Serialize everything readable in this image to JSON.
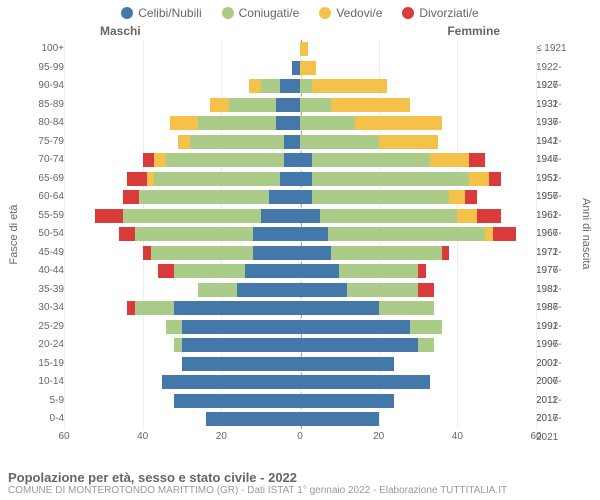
{
  "legend": [
    {
      "label": "Celibi/Nubili",
      "color": "#4477aa"
    },
    {
      "label": "Coniugati/e",
      "color": "#aacc88"
    },
    {
      "label": "Vedovi/e",
      "color": "#f4c24b"
    },
    {
      "label": "Divorziati/e",
      "color": "#d93a3a"
    }
  ],
  "headers": {
    "male": "Maschi",
    "female": "Femmine"
  },
  "yaxis_left_title": "Fasce di età",
  "yaxis_right_title": "Anni di nascita",
  "xaxis": {
    "ticks": [
      60,
      40,
      20,
      0,
      20,
      40,
      60
    ],
    "max": 60
  },
  "title": "Popolazione per età, sesso e stato civile - 2022",
  "source": "COMUNE DI MONTEROTONDO MARITTIMO (GR) - Dati ISTAT 1° gennaio 2022 - Elaborazione TUTTITALIA.IT",
  "colors": {
    "single": "#4477aa",
    "married": "#aacc88",
    "widowed": "#f4c24b",
    "divorced": "#d93a3a",
    "grid": "#eeeeee",
    "centerline": "#aaaaaa",
    "text": "#666666"
  },
  "rows": [
    {
      "age": "100+",
      "year": "≤ 1921",
      "m": {
        "s": 0,
        "c": 0,
        "w": 0,
        "d": 0
      },
      "f": {
        "s": 0,
        "c": 0,
        "w": 2,
        "d": 0
      }
    },
    {
      "age": "95-99",
      "year": "1922-1926",
      "m": {
        "s": 2,
        "c": 0,
        "w": 0,
        "d": 0
      },
      "f": {
        "s": 0,
        "c": 0,
        "w": 4,
        "d": 0
      }
    },
    {
      "age": "90-94",
      "year": "1927-1931",
      "m": {
        "s": 5,
        "c": 5,
        "w": 3,
        "d": 0
      },
      "f": {
        "s": 0,
        "c": 3,
        "w": 19,
        "d": 0
      }
    },
    {
      "age": "85-89",
      "year": "1932-1936",
      "m": {
        "s": 6,
        "c": 12,
        "w": 5,
        "d": 0
      },
      "f": {
        "s": 0,
        "c": 8,
        "w": 20,
        "d": 0
      }
    },
    {
      "age": "80-84",
      "year": "1937-1941",
      "m": {
        "s": 6,
        "c": 20,
        "w": 7,
        "d": 0
      },
      "f": {
        "s": 0,
        "c": 14,
        "w": 22,
        "d": 0
      }
    },
    {
      "age": "75-79",
      "year": "1942-1946",
      "m": {
        "s": 4,
        "c": 24,
        "w": 3,
        "d": 0
      },
      "f": {
        "s": 0,
        "c": 20,
        "w": 15,
        "d": 0
      }
    },
    {
      "age": "70-74",
      "year": "1947-1951",
      "m": {
        "s": 4,
        "c": 30,
        "w": 3,
        "d": 3
      },
      "f": {
        "s": 3,
        "c": 30,
        "w": 10,
        "d": 4
      }
    },
    {
      "age": "65-69",
      "year": "1952-1956",
      "m": {
        "s": 5,
        "c": 32,
        "w": 2,
        "d": 5
      },
      "f": {
        "s": 3,
        "c": 40,
        "w": 5,
        "d": 3
      }
    },
    {
      "age": "60-64",
      "year": "1957-1961",
      "m": {
        "s": 8,
        "c": 33,
        "w": 0,
        "d": 4
      },
      "f": {
        "s": 3,
        "c": 35,
        "w": 4,
        "d": 3
      }
    },
    {
      "age": "55-59",
      "year": "1962-1966",
      "m": {
        "s": 10,
        "c": 35,
        "w": 0,
        "d": 7
      },
      "f": {
        "s": 5,
        "c": 35,
        "w": 5,
        "d": 6
      }
    },
    {
      "age": "50-54",
      "year": "1967-1971",
      "m": {
        "s": 12,
        "c": 30,
        "w": 0,
        "d": 4
      },
      "f": {
        "s": 7,
        "c": 40,
        "w": 2,
        "d": 6
      }
    },
    {
      "age": "45-49",
      "year": "1972-1976",
      "m": {
        "s": 12,
        "c": 26,
        "w": 0,
        "d": 2
      },
      "f": {
        "s": 8,
        "c": 28,
        "w": 0,
        "d": 2
      }
    },
    {
      "age": "40-44",
      "year": "1977-1981",
      "m": {
        "s": 14,
        "c": 18,
        "w": 0,
        "d": 4
      },
      "f": {
        "s": 10,
        "c": 20,
        "w": 0,
        "d": 2
      }
    },
    {
      "age": "35-39",
      "year": "1982-1986",
      "m": {
        "s": 16,
        "c": 10,
        "w": 0,
        "d": 0
      },
      "f": {
        "s": 12,
        "c": 18,
        "w": 0,
        "d": 4
      }
    },
    {
      "age": "30-34",
      "year": "1987-1991",
      "m": {
        "s": 32,
        "c": 10,
        "w": 0,
        "d": 2
      },
      "f": {
        "s": 20,
        "c": 14,
        "w": 0,
        "d": 0
      }
    },
    {
      "age": "25-29",
      "year": "1992-1996",
      "m": {
        "s": 30,
        "c": 4,
        "w": 0,
        "d": 0
      },
      "f": {
        "s": 28,
        "c": 8,
        "w": 0,
        "d": 0
      }
    },
    {
      "age": "20-24",
      "year": "1997-2001",
      "m": {
        "s": 30,
        "c": 2,
        "w": 0,
        "d": 0
      },
      "f": {
        "s": 30,
        "c": 4,
        "w": 0,
        "d": 0
      }
    },
    {
      "age": "15-19",
      "year": "2002-2006",
      "m": {
        "s": 30,
        "c": 0,
        "w": 0,
        "d": 0
      },
      "f": {
        "s": 24,
        "c": 0,
        "w": 0,
        "d": 0
      }
    },
    {
      "age": "10-14",
      "year": "2007-2011",
      "m": {
        "s": 35,
        "c": 0,
        "w": 0,
        "d": 0
      },
      "f": {
        "s": 33,
        "c": 0,
        "w": 0,
        "d": 0
      }
    },
    {
      "age": "5-9",
      "year": "2012-2016",
      "m": {
        "s": 32,
        "c": 0,
        "w": 0,
        "d": 0
      },
      "f": {
        "s": 24,
        "c": 0,
        "w": 0,
        "d": 0
      }
    },
    {
      "age": "0-4",
      "year": "2017-2021",
      "m": {
        "s": 24,
        "c": 0,
        "w": 0,
        "d": 0
      },
      "f": {
        "s": 20,
        "c": 0,
        "w": 0,
        "d": 0
      }
    }
  ]
}
